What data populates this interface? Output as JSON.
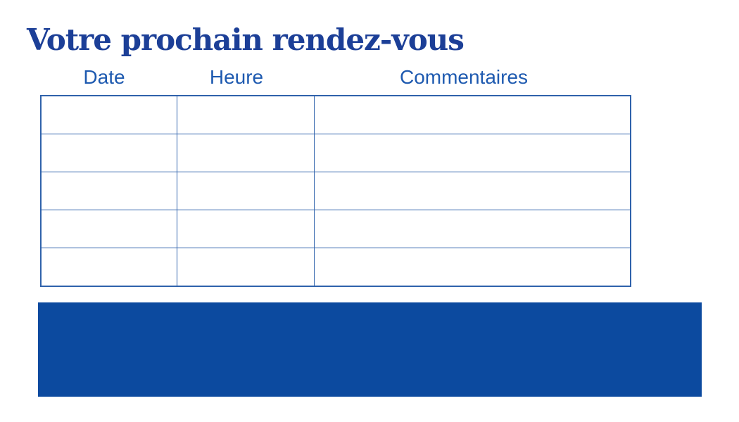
{
  "page": {
    "title": "Votre prochain rendez-vous"
  },
  "table": {
    "headers": [
      "Date",
      "Heure",
      "Commentaires"
    ],
    "rows": [
      [
        "",
        "",
        ""
      ],
      [
        "",
        "",
        ""
      ],
      [
        "",
        "",
        ""
      ],
      [
        "",
        "",
        ""
      ],
      [
        "",
        "",
        ""
      ]
    ]
  },
  "colors": {
    "background": "#ffffff",
    "title_text": "#1c3f97",
    "header_text": "#1e5ab0",
    "table_border": "#2f62ab",
    "banner_fill": "#0c4a9f"
  }
}
